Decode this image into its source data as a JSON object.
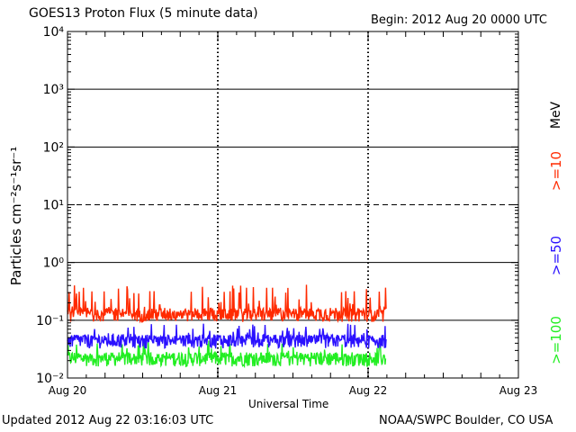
{
  "header": {
    "title": "GOES13 Proton Flux (5 minute data)",
    "begin": "Begin: 2012 Aug 20 0000 UTC"
  },
  "footer": {
    "updated": "Updated 2012 Aug 22 03:16:03 UTC",
    "credit": "NOAA/SWPC Boulder, CO USA"
  },
  "chart_data": {
    "type": "line",
    "title": "GOES13 Proton Flux (5 minute data)",
    "xlabel": "Universal Time",
    "ylabel": "Particles cm⁻²s⁻¹sr⁻¹",
    "y_scale": "log",
    "ylim": [
      0.01,
      10000
    ],
    "y_ticks": [
      {
        "value": 0.01,
        "label": "10⁻²"
      },
      {
        "value": 0.1,
        "label": "10⁻¹"
      },
      {
        "value": 1,
        "label": "10⁰"
      },
      {
        "value": 10,
        "label": "10¹"
      },
      {
        "value": 100,
        "label": "10²"
      },
      {
        "value": 1000,
        "label": "10³"
      },
      {
        "value": 10000,
        "label": "10⁴"
      }
    ],
    "x_days": [
      0,
      3
    ],
    "x_ticks": [
      {
        "day": 0,
        "label": "Aug 20"
      },
      {
        "day": 1,
        "label": "Aug 21"
      },
      {
        "day": 2,
        "label": "Aug 22"
      },
      {
        "day": 3,
        "label": "Aug 23"
      }
    ],
    "data_end_day": 2.12,
    "reference_line": {
      "value": 10,
      "style": "dashed"
    },
    "units_label": "MeV",
    "series": [
      {
        "name": ">=10",
        "color": "#ff2a00",
        "base": 0.13,
        "spike_max": 0.42
      },
      {
        "name": ">=50",
        "color": "#2a10ff",
        "base": 0.045,
        "spike_max": 0.09
      },
      {
        "name": ">=100",
        "color": "#22ee22",
        "base": 0.022,
        "spike_max": 0.045
      }
    ]
  }
}
